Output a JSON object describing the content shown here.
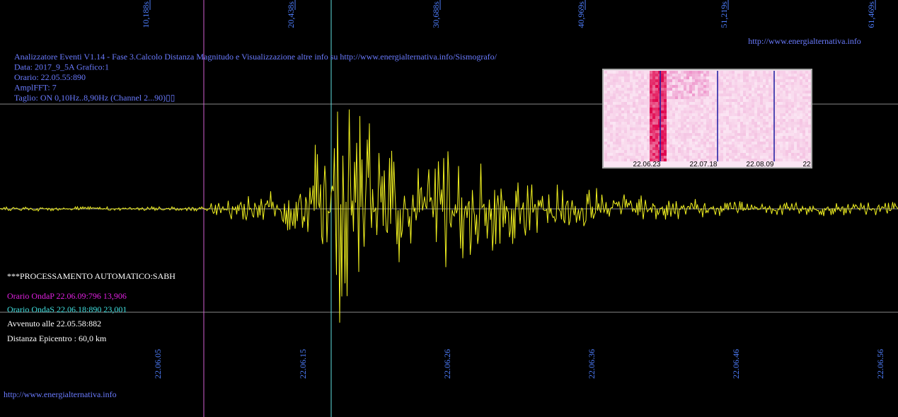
{
  "top_labels": [
    "10,188s",
    "20,438s",
    "30,688s",
    "40,969s",
    "51,219s",
    "61,469s"
  ],
  "site_url_top": "http://www.energialternativa.info",
  "header": {
    "lines": [
      "Analizzatore Eventi V1.14 - Fase 3.Calcolo Distanza Magnitudo e Visualizzazione  altre info su http://www.energialternativa.info/Sismografo/",
      "Data: 2017_9_5A Grafico:1",
      "Orario: 22.05.55:890",
      "AmplFFT: 7",
      "Taglio: ON 0,10Hz..8,90Hz      (Channel 2...90)▯▯"
    ]
  },
  "processing": {
    "title": "***PROCESSAMENTO AUTOMATICO:SABH",
    "onda_p": "Orario OndaP 22.06.09:796  13,906",
    "onda_s": "Orario OndaS 22.06.18:890  23,001",
    "avvenuto": "Avvenuto alle 22.05.58:882",
    "distanza": "Distanza Epicentro : 60,0 km"
  },
  "time_labels": [
    "22.06.05",
    "22.06.15",
    "22.06.26",
    "22.06.36",
    "22.06.46",
    "22.06.56"
  ],
  "spectrogram": {
    "labels": [
      "22.06.23",
      "22.07.18",
      "22.08.09",
      "22"
    ]
  },
  "site_url_bottom": "http://www.energialternativa.info"
}
